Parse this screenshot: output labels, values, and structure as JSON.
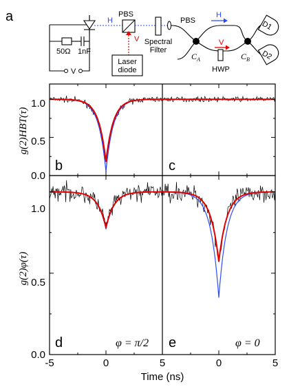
{
  "diagram": {
    "panel_label": "a",
    "resistor_label": "50Ω",
    "capacitor_label": "1nF",
    "voltage_label": "V",
    "pbs_left_label": "PBS",
    "laser_label_line1": "Laser",
    "laser_label_line2": "diode",
    "h_label_left": "H",
    "v_label_left": "V",
    "filter_label_line1": "Spectral",
    "filter_label_line2": "Filter",
    "pbs_right_label": "PBS",
    "h_label_right": "H",
    "v_label_right": "V",
    "coupler_a_label": "C",
    "coupler_a_sub": "A",
    "coupler_b_label": "C",
    "coupler_b_sub": "B",
    "hwp_label": "HWP",
    "detector1_label": "D1",
    "detector2_label": "D2",
    "h_color": "#2b4bff",
    "v_color": "#e00000"
  },
  "chart_data": [
    {
      "type": "line",
      "panel": "b",
      "xlim": [
        -5,
        5
      ],
      "ylim": [
        0,
        1.2
      ],
      "y_ticks": [
        "0.0",
        "0.5",
        "1.0"
      ],
      "ylabel": "g(2)HBT(τ)",
      "raw_min_at_0": 0.08,
      "red_fit_min": 0.18,
      "blue_theory_min": 0.05,
      "dip_width_ns": 0.9,
      "baseline": 1.0
    },
    {
      "type": "line",
      "panel": "c",
      "xlim": [
        0,
        5
      ],
      "ylim": [
        0,
        1.2
      ],
      "baseline": 1.0
    },
    {
      "type": "line",
      "panel": "d",
      "xlim": [
        -5,
        5
      ],
      "ylim": [
        0,
        1.1
      ],
      "y_ticks": [
        "0.0",
        "0.5",
        "1.0"
      ],
      "ylabel": "g(2)φ(τ)",
      "annotation": "φ = π/2",
      "red_fit_min": 0.78,
      "blue_theory_min": 0.77,
      "dip_width_ns": 1.0,
      "baseline": 1.0
    },
    {
      "type": "line",
      "panel": "e",
      "xlim": [
        0,
        5
      ],
      "ylim": [
        0,
        1.1
      ],
      "annotation": "φ = 0",
      "red_fit_min": 0.57,
      "blue_theory_min": 0.35,
      "dip_width_ns": 1.0,
      "baseline": 1.0
    }
  ],
  "axes": {
    "x_ticks": [
      "-5",
      "0",
      "5",
      "0",
      "5"
    ],
    "xlabel": "Time (ns)"
  },
  "colors": {
    "raw": "#000000",
    "fit": "#e00000",
    "theory": "#2b4bff"
  }
}
